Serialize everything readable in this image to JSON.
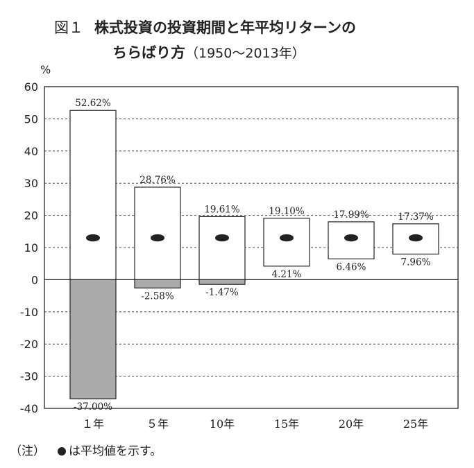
{
  "title": {
    "fig_no": "図１",
    "line1": "株式投資の投資期間と年平均リターンの",
    "line2": "ちらばり方",
    "range": "（1950～2013年）"
  },
  "chart_data": {
    "type": "bar",
    "ylabel": "%",
    "ylim": [
      -40,
      60
    ],
    "yticks": [
      "60",
      "50",
      "40",
      "30",
      "20",
      "10",
      "0",
      "-10",
      "-20",
      "-30",
      "-40"
    ],
    "grid": true,
    "categories": [
      "１年",
      "５年",
      "10年",
      "15年",
      "20年",
      "25年"
    ],
    "max": [
      52.62,
      28.76,
      19.61,
      19.1,
      17.99,
      17.37
    ],
    "min": [
      -37.0,
      -2.58,
      -1.47,
      4.21,
      6.46,
      7.96
    ],
    "mean": [
      13,
      13,
      13,
      13,
      13,
      13
    ],
    "max_labels": [
      "52.62%",
      "28.76%",
      "19.61%",
      "19.10%",
      "17.99%",
      "17.37%"
    ],
    "min_labels": [
      "-37.00%",
      "-2.58%",
      "-1.47%",
      "4.21%",
      "6.46%",
      "7.96%"
    ]
  },
  "note": {
    "prefix": "（注）",
    "text": "は平均値を示す。"
  }
}
